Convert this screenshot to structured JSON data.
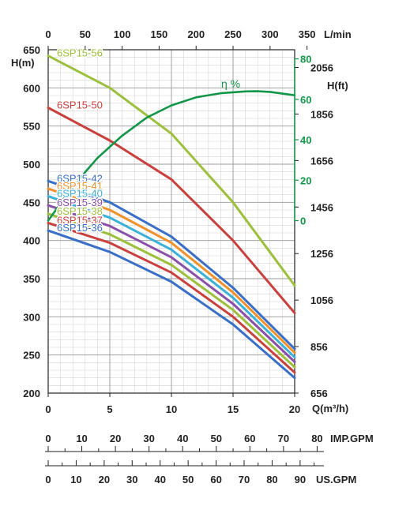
{
  "chart_data": {
    "type": "line",
    "x_axis_bottom": {
      "label": "Q(m³/h)",
      "range": [
        0,
        20
      ],
      "ticks": [
        0,
        5,
        10,
        15,
        20
      ]
    },
    "x_axis_top": {
      "label": "L/min",
      "range": [
        0,
        333.3
      ],
      "ticks": [
        0,
        50,
        100,
        150,
        200,
        250,
        300,
        350
      ]
    },
    "y_axis_left": {
      "label": "H(m)",
      "range": [
        200,
        650
      ],
      "ticks": [
        200,
        250,
        300,
        350,
        400,
        450,
        500,
        550,
        600,
        650
      ]
    },
    "y_axis_right_ft": {
      "label": "H(ft)",
      "ticks": [
        656,
        856,
        1056,
        1256,
        1456,
        1656,
        1856,
        2056
      ]
    },
    "y_axis_efficiency": {
      "label": "η %",
      "range": [
        0,
        80
      ],
      "ticks": [
        0,
        20,
        40,
        60,
        80
      ]
    },
    "grid": true,
    "series": [
      {
        "name": "6SP15-56",
        "color": "#9dc03c",
        "x": [
          0,
          5,
          10,
          15,
          20
        ],
        "y": [
          642,
          600,
          540,
          450,
          341
        ]
      },
      {
        "name": "6SP15-50",
        "color": "#c9403c",
        "x": [
          0,
          5,
          10,
          15,
          20
        ],
        "y": [
          574,
          531,
          480,
          400,
          305
        ]
      },
      {
        "name": "6SP15-42",
        "color": "#3a6fc8",
        "x": [
          0,
          5,
          10,
          15,
          20
        ],
        "y": [
          478,
          450,
          405,
          338,
          258
        ]
      },
      {
        "name": "6SP15-41",
        "color": "#f0912b",
        "x": [
          0,
          5,
          10,
          15,
          20
        ],
        "y": [
          468,
          440,
          397,
          332,
          253
        ]
      },
      {
        "name": "6SP15-40",
        "color": "#3bb1d8",
        "x": [
          0,
          5,
          10,
          15,
          20
        ],
        "y": [
          458,
          430,
          388,
          325,
          247
        ]
      },
      {
        "name": "6SP15-39",
        "color": "#8a4fa8",
        "x": [
          0,
          5,
          10,
          15,
          20
        ],
        "y": [
          446,
          419,
          378,
          317,
          241
        ]
      },
      {
        "name": "6SP15-38",
        "color": "#9dc03c",
        "x": [
          0,
          5,
          10,
          15,
          20
        ],
        "y": [
          435,
          408,
          368,
          309,
          234
        ]
      },
      {
        "name": "6SP15-37",
        "color": "#c9403c",
        "x": [
          0,
          5,
          10,
          15,
          20
        ],
        "y": [
          423,
          397,
          358,
          300,
          227
        ]
      },
      {
        "name": "6SP15-36",
        "color": "#3a6fc8",
        "x": [
          0,
          5,
          10,
          15,
          20
        ],
        "y": [
          413,
          385,
          346,
          290,
          220
        ]
      }
    ],
    "efficiency_curve": {
      "name": "η %",
      "color": "#14964a",
      "x": [
        0,
        2,
        4,
        6,
        8,
        10,
        12,
        14,
        16,
        17,
        18,
        20
      ],
      "y": [
        0,
        17,
        31,
        42,
        51,
        57,
        61,
        63,
        63.9,
        64,
        63.7,
        62
      ]
    },
    "secondary_axes": {
      "imp_gpm": {
        "label": "IMP.GPM",
        "ticks": [
          0,
          10,
          20,
          30,
          40,
          50,
          60,
          70,
          80
        ]
      },
      "us_gpm": {
        "label": "US.GPM",
        "ticks": [
          0,
          10,
          20,
          30,
          40,
          50,
          60,
          70,
          80,
          90
        ]
      }
    }
  }
}
